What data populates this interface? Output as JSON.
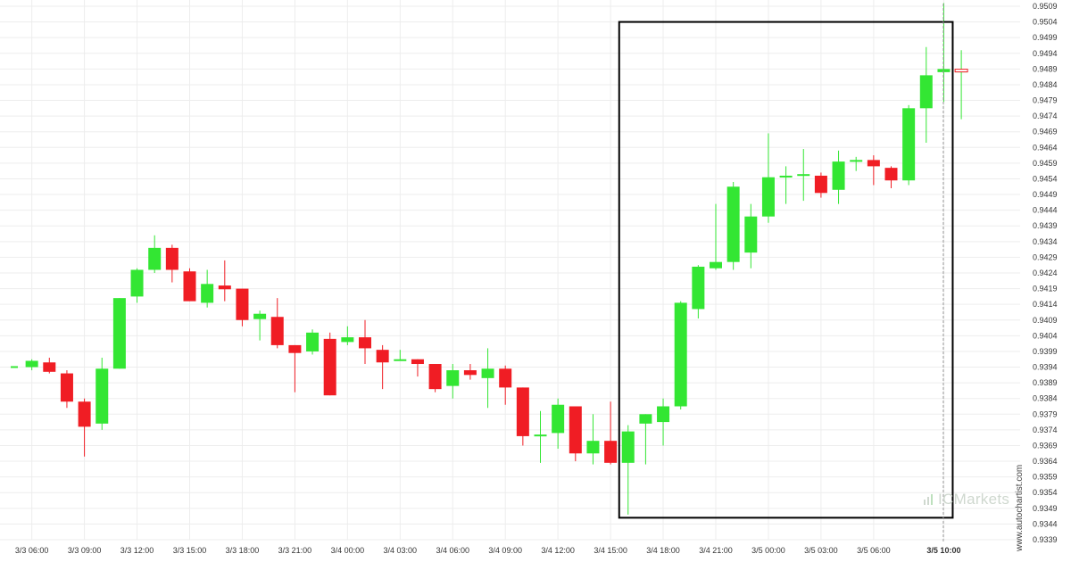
{
  "chart_data": {
    "type": "candlestick",
    "y_ticks": [
      "0.9509",
      "0.9504",
      "0.9499",
      "0.9494",
      "0.9489",
      "0.9484",
      "0.9479",
      "0.9474",
      "0.9469",
      "0.9464",
      "0.9459",
      "0.9454",
      "0.9449",
      "0.9444",
      "0.9439",
      "0.9434",
      "0.9429",
      "0.9424",
      "0.9419",
      "0.9414",
      "0.9409",
      "0.9404",
      "0.9399",
      "0.9394",
      "0.9389",
      "0.9384",
      "0.9379",
      "0.9374",
      "0.9369",
      "0.9364",
      "0.9359",
      "0.9354",
      "0.9349",
      "0.9344",
      "0.9339"
    ],
    "x_ticks": [
      {
        "label": "3/3 06:00",
        "i": 1
      },
      {
        "label": "3/3 09:00",
        "i": 4
      },
      {
        "label": "3/3 12:00",
        "i": 7
      },
      {
        "label": "3/3 15:00",
        "i": 10
      },
      {
        "label": "3/3 18:00",
        "i": 13
      },
      {
        "label": "3/3 21:00",
        "i": 16
      },
      {
        "label": "3/4 00:00",
        "i": 19
      },
      {
        "label": "3/4 03:00",
        "i": 22
      },
      {
        "label": "3/4 06:00",
        "i": 25
      },
      {
        "label": "3/4 09:00",
        "i": 28
      },
      {
        "label": "3/4 12:00",
        "i": 31
      },
      {
        "label": "3/4 15:00",
        "i": 34
      },
      {
        "label": "3/4 18:00",
        "i": 37
      },
      {
        "label": "3/4 21:00",
        "i": 40
      },
      {
        "label": "3/5 00:00",
        "i": 43
      },
      {
        "label": "3/5 03:00",
        "i": 46
      },
      {
        "label": "3/5 06:00",
        "i": 49
      },
      {
        "label": "3/5 10:00",
        "i": 53,
        "bold": true
      }
    ],
    "ylim": [
      0.9339,
      0.9509
    ],
    "candles": [
      {
        "o": 0.93943,
        "h": 0.93943,
        "l": 0.93943,
        "c": 0.93943
      },
      {
        "o": 0.9394,
        "h": 0.93965,
        "l": 0.9393,
        "c": 0.9396
      },
      {
        "o": 0.93955,
        "h": 0.9397,
        "l": 0.9392,
        "c": 0.93925
      },
      {
        "o": 0.9392,
        "h": 0.9393,
        "l": 0.9381,
        "c": 0.9383
      },
      {
        "o": 0.9383,
        "h": 0.9384,
        "l": 0.93655,
        "c": 0.9375
      },
      {
        "o": 0.9376,
        "h": 0.9397,
        "l": 0.9374,
        "c": 0.93935
      },
      {
        "o": 0.93935,
        "h": 0.9416,
        "l": 0.93935,
        "c": 0.9416
      },
      {
        "o": 0.94165,
        "h": 0.94255,
        "l": 0.94145,
        "c": 0.9425
      },
      {
        "o": 0.9425,
        "h": 0.9436,
        "l": 0.9424,
        "c": 0.9432
      },
      {
        "o": 0.9432,
        "h": 0.9433,
        "l": 0.9421,
        "c": 0.9425
      },
      {
        "o": 0.94245,
        "h": 0.94255,
        "l": 0.9415,
        "c": 0.9415
      },
      {
        "o": 0.94145,
        "h": 0.9425,
        "l": 0.9413,
        "c": 0.94205
      },
      {
        "o": 0.942,
        "h": 0.9428,
        "l": 0.9415,
        "c": 0.94188
      },
      {
        "o": 0.9419,
        "h": 0.9419,
        "l": 0.9407,
        "c": 0.9409
      },
      {
        "o": 0.94093,
        "h": 0.9412,
        "l": 0.94025,
        "c": 0.9411
      },
      {
        "o": 0.941,
        "h": 0.9416,
        "l": 0.94,
        "c": 0.9401
      },
      {
        "o": 0.9401,
        "h": 0.9401,
        "l": 0.9386,
        "c": 0.93985
      },
      {
        "o": 0.9399,
        "h": 0.9406,
        "l": 0.9398,
        "c": 0.9405
      },
      {
        "o": 0.9403,
        "h": 0.9405,
        "l": 0.9385,
        "c": 0.9385
      },
      {
        "o": 0.9402,
        "h": 0.9407,
        "l": 0.9401,
        "c": 0.94035
      },
      {
        "o": 0.94035,
        "h": 0.9409,
        "l": 0.9395,
        "c": 0.94
      },
      {
        "o": 0.93995,
        "h": 0.9401,
        "l": 0.9387,
        "c": 0.93955
      },
      {
        "o": 0.93965,
        "h": 0.93995,
        "l": 0.9396,
        "c": 0.93965
      },
      {
        "o": 0.93965,
        "h": 0.93965,
        "l": 0.9391,
        "c": 0.9395
      },
      {
        "o": 0.9395,
        "h": 0.9395,
        "l": 0.9386,
        "c": 0.9387
      },
      {
        "o": 0.9388,
        "h": 0.9395,
        "l": 0.9384,
        "c": 0.9393
      },
      {
        "o": 0.9393,
        "h": 0.9395,
        "l": 0.939,
        "c": 0.93915
      },
      {
        "o": 0.93905,
        "h": 0.94,
        "l": 0.9381,
        "c": 0.93935
      },
      {
        "o": 0.93935,
        "h": 0.93945,
        "l": 0.9382,
        "c": 0.93875
      },
      {
        "o": 0.93875,
        "h": 0.93875,
        "l": 0.9369,
        "c": 0.9372
      },
      {
        "o": 0.93725,
        "h": 0.938,
        "l": 0.93635,
        "c": 0.93725
      },
      {
        "o": 0.9373,
        "h": 0.9384,
        "l": 0.9368,
        "c": 0.9382
      },
      {
        "o": 0.93815,
        "h": 0.93815,
        "l": 0.9364,
        "c": 0.93665
      },
      {
        "o": 0.93665,
        "h": 0.9379,
        "l": 0.9363,
        "c": 0.93705
      },
      {
        "o": 0.93705,
        "h": 0.9383,
        "l": 0.9363,
        "c": 0.93635
      },
      {
        "o": 0.93635,
        "h": 0.93755,
        "l": 0.9347,
        "c": 0.93735
      },
      {
        "o": 0.9376,
        "h": 0.9379,
        "l": 0.9363,
        "c": 0.9379
      },
      {
        "o": 0.93765,
        "h": 0.9384,
        "l": 0.9369,
        "c": 0.93815
      },
      {
        "o": 0.93815,
        "h": 0.9415,
        "l": 0.93805,
        "c": 0.94145
      },
      {
        "o": 0.94125,
        "h": 0.94265,
        "l": 0.94095,
        "c": 0.9426
      },
      {
        "o": 0.94255,
        "h": 0.9446,
        "l": 0.9425,
        "c": 0.94275
      },
      {
        "o": 0.94275,
        "h": 0.9453,
        "l": 0.9425,
        "c": 0.94515
      },
      {
        "o": 0.94305,
        "h": 0.9446,
        "l": 0.94255,
        "c": 0.9442
      },
      {
        "o": 0.9442,
        "h": 0.94685,
        "l": 0.944,
        "c": 0.94545
      },
      {
        "o": 0.9455,
        "h": 0.9458,
        "l": 0.9446,
        "c": 0.9455
      },
      {
        "o": 0.94555,
        "h": 0.94635,
        "l": 0.9447,
        "c": 0.94555
      },
      {
        "o": 0.9455,
        "h": 0.9456,
        "l": 0.9448,
        "c": 0.94495
      },
      {
        "o": 0.94505,
        "h": 0.9463,
        "l": 0.9446,
        "c": 0.94595
      },
      {
        "o": 0.946,
        "h": 0.9461,
        "l": 0.94565,
        "c": 0.946
      },
      {
        "o": 0.946,
        "h": 0.94615,
        "l": 0.9452,
        "c": 0.9458
      },
      {
        "o": 0.94575,
        "h": 0.9458,
        "l": 0.9451,
        "c": 0.94535
      },
      {
        "o": 0.94535,
        "h": 0.94775,
        "l": 0.9452,
        "c": 0.94765
      },
      {
        "o": 0.94765,
        "h": 0.9496,
        "l": 0.94655,
        "c": 0.9487
      },
      {
        "o": 0.9488,
        "h": 0.951,
        "l": 0.94785,
        "c": 0.9489
      },
      {
        "o": 0.94885,
        "h": 0.9495,
        "l": 0.9473,
        "c": 0.94885
      }
    ],
    "highlight": {
      "from_index": 35,
      "to_index": 53,
      "low": 0.9346,
      "high": 0.9504
    },
    "vline_index": 53
  },
  "colors": {
    "up": "#33e633",
    "down": "#f01d24",
    "grid": "#ededed",
    "highlight_border": "#000000",
    "vline": "#9a9a9a"
  },
  "watermark": "www.autochartist.com",
  "brand": "Markets"
}
